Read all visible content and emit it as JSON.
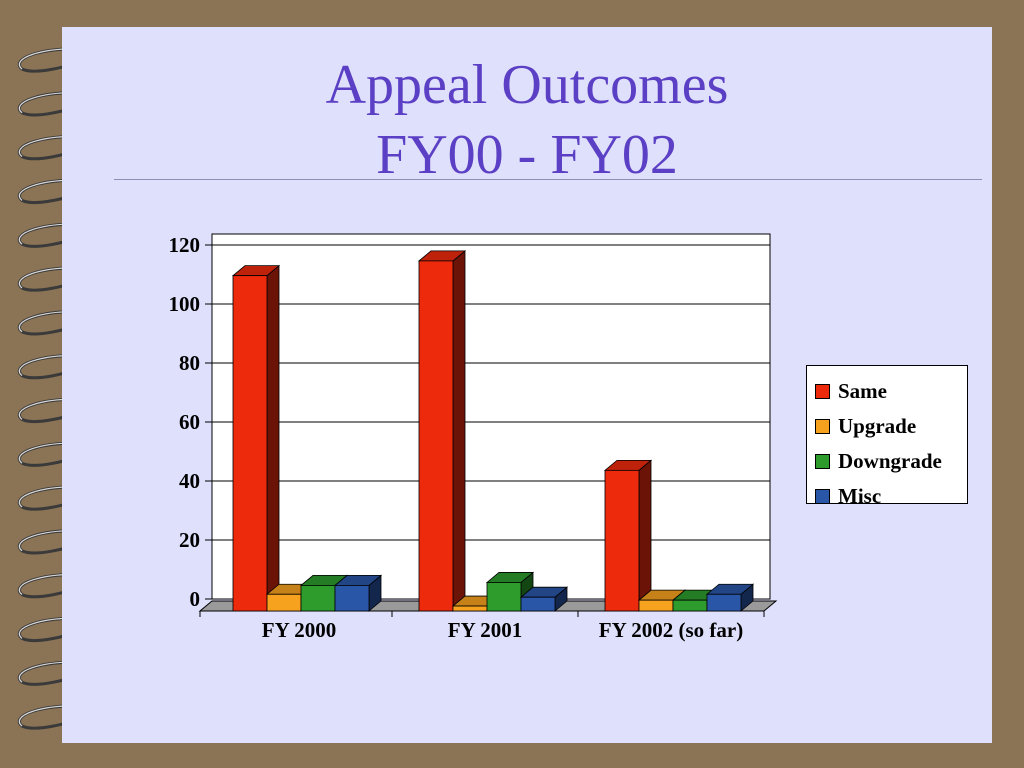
{
  "slide": {
    "title_line1": "Appeal Outcomes",
    "title_line2": "FY00 - FY02"
  },
  "colors": {
    "background": "#dfe0fb",
    "title": "#5b3fc4",
    "binding": "#8b7355"
  },
  "chart_data": {
    "type": "bar",
    "style": "3d-clustered",
    "categories": [
      "FY 2000",
      "FY 2001",
      "FY 2002 (so far)"
    ],
    "series": [
      {
        "name": "Same",
        "values": [
          113,
          118,
          47
        ],
        "color": "#ee2a0d"
      },
      {
        "name": "Upgrade",
        "values": [
          5,
          1,
          3
        ],
        "color": "#f7a21e"
      },
      {
        "name": "Downgrade",
        "values": [
          8,
          9,
          3
        ],
        "color": "#2d9c2d"
      },
      {
        "name": "Misc",
        "values": [
          8,
          4,
          5
        ],
        "color": "#2a56a8"
      }
    ],
    "ylim": [
      0,
      120
    ],
    "yticks": [
      "0",
      "20",
      "40",
      "60",
      "80",
      "100",
      "120"
    ],
    "grid": true,
    "legend_position": "right"
  }
}
